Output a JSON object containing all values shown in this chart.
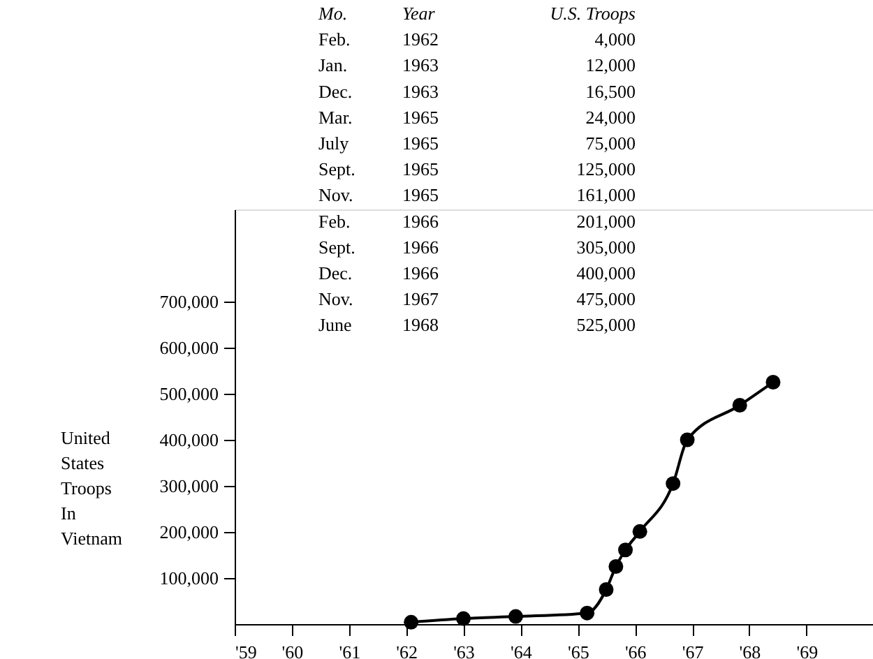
{
  "chart_data": {
    "type": "line",
    "ylabel": "United States Troops In Vietnam",
    "x": [
      "1962-02",
      "1963-01",
      "1963-12",
      "1965-03",
      "1965-07",
      "1965-09",
      "1965-11",
      "1966-02",
      "1966-09",
      "1966-12",
      "1967-11",
      "1968-06"
    ],
    "values": [
      4000,
      12000,
      16500,
      24000,
      75000,
      125000,
      161000,
      201000,
      305000,
      400000,
      475000,
      525000
    ],
    "annotations": [
      "Mo.",
      "Year",
      "U.S. Troops",
      "Feb.",
      "1962",
      "4,000",
      "Jan.",
      "1963",
      "12,000",
      "Dec.",
      "1963",
      "16,500",
      "Mar.",
      "1965",
      "24,000",
      "July",
      "1965",
      "75,000",
      "Sept.",
      "1965",
      "125,000",
      "Nov.",
      "1965",
      "161,000",
      "Feb.",
      "1966",
      "201,000",
      "Sept.",
      "1966",
      "305,000",
      "Dec.",
      "1966",
      "400,000",
      "Nov.",
      "1967",
      "475,000",
      "June",
      "1968",
      "525,000"
    ],
    "color": "#000000",
    "marker": "circle",
    "line_style": "solid",
    "xlim": [
      "1959-01-01",
      "1970-03-01"
    ],
    "xticks": [
      {
        "value": "1959",
        "label": "'59"
      },
      {
        "value": "1960",
        "label": "'60"
      },
      {
        "value": "1961",
        "label": "'61"
      },
      {
        "value": "1962",
        "label": "'62"
      },
      {
        "value": "1963",
        "label": "'63"
      },
      {
        "value": "1964",
        "label": "'64"
      },
      {
        "value": "1965",
        "label": "'65"
      },
      {
        "value": "1966",
        "label": "'66"
      },
      {
        "value": "1967",
        "label": "'67"
      },
      {
        "value": "1968",
        "label": "'68"
      },
      {
        "value": "1969",
        "label": "'69"
      }
    ],
    "ylim": [
      0,
      900000
    ],
    "yticks": [
      {
        "value": 100000,
        "label": "100,000"
      },
      {
        "value": 200000,
        "label": "200,000"
      },
      {
        "value": 300000,
        "label": "300,000"
      },
      {
        "value": 400000,
        "label": "400,000"
      },
      {
        "value": 500000,
        "label": "500,000"
      },
      {
        "value": 600000,
        "label": "600,000"
      },
      {
        "value": 700000,
        "label": "700,000"
      }
    ],
    "grid": false
  }
}
